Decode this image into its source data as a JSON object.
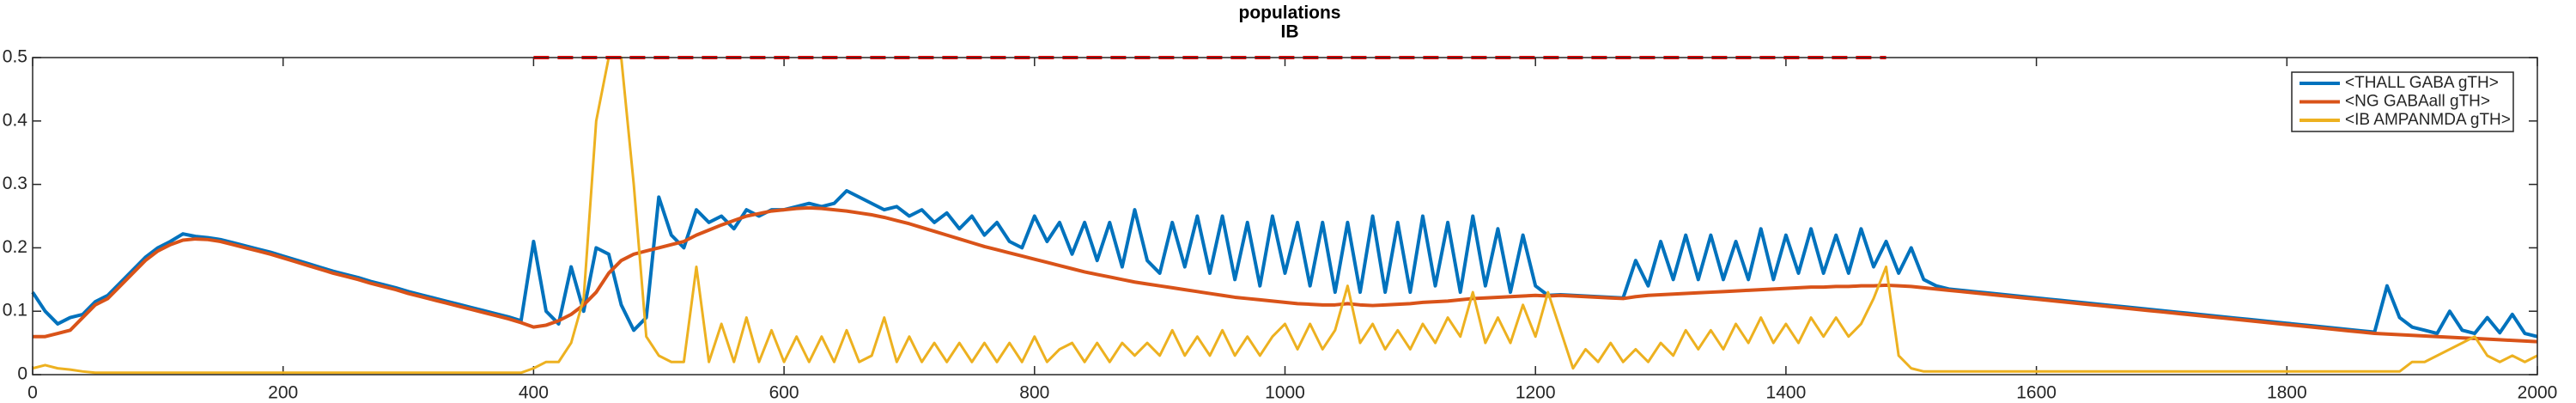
{
  "chart_data": {
    "type": "line",
    "title": "populations",
    "subtitle": "IB",
    "x": [
      0,
      10,
      20,
      30,
      40,
      50,
      60,
      70,
      80,
      90,
      100,
      110,
      120,
      130,
      140,
      150,
      160,
      170,
      180,
      190,
      200,
      210,
      220,
      230,
      240,
      250,
      260,
      270,
      280,
      290,
      300,
      310,
      320,
      330,
      340,
      350,
      360,
      370,
      380,
      390,
      400,
      410,
      420,
      430,
      440,
      450,
      460,
      470,
      480,
      490,
      500,
      510,
      520,
      530,
      540,
      550,
      560,
      570,
      580,
      590,
      600,
      610,
      620,
      630,
      640,
      650,
      660,
      670,
      680,
      690,
      700,
      710,
      720,
      730,
      740,
      750,
      760,
      770,
      780,
      790,
      800,
      810,
      820,
      830,
      840,
      850,
      860,
      870,
      880,
      890,
      900,
      910,
      920,
      930,
      940,
      950,
      960,
      970,
      980,
      990,
      1000,
      1010,
      1020,
      1030,
      1040,
      1050,
      1060,
      1070,
      1080,
      1090,
      1100,
      1110,
      1120,
      1130,
      1140,
      1150,
      1160,
      1170,
      1180,
      1190,
      1200,
      1210,
      1220,
      1230,
      1240,
      1250,
      1260,
      1270,
      1280,
      1290,
      1300,
      1310,
      1320,
      1330,
      1340,
      1350,
      1360,
      1370,
      1380,
      1390,
      1400,
      1410,
      1420,
      1430,
      1440,
      1450,
      1460,
      1470,
      1480,
      1490,
      1500,
      1510,
      1520,
      1530,
      1540,
      1550,
      1560,
      1570,
      1580,
      1590,
      1600,
      1610,
      1620,
      1630,
      1640,
      1650,
      1660,
      1670,
      1680,
      1690,
      1700,
      1710,
      1720,
      1730,
      1740,
      1750,
      1760,
      1770,
      1780,
      1790,
      1800,
      1810,
      1820,
      1830,
      1840,
      1850,
      1860,
      1870,
      1880,
      1890,
      1900,
      1910,
      1920,
      1930,
      1940,
      1950,
      1960,
      1970,
      1980,
      1990,
      2000
    ],
    "series": [
      {
        "name": "<THALL GABA gTH>",
        "color": "#0072bd",
        "values": [
          0.13,
          0.1,
          0.08,
          0.09,
          0.095,
          0.115,
          0.125,
          0.145,
          0.165,
          0.185,
          0.2,
          0.21,
          0.222,
          0.218,
          0.216,
          0.213,
          0.208,
          0.203,
          0.198,
          0.193,
          0.187,
          0.181,
          0.175,
          0.169,
          0.163,
          0.158,
          0.153,
          0.147,
          0.142,
          0.137,
          0.131,
          0.126,
          0.121,
          0.116,
          0.111,
          0.106,
          0.101,
          0.096,
          0.091,
          0.085,
          0.21,
          0.1,
          0.08,
          0.17,
          0.1,
          0.2,
          0.19,
          0.11,
          0.07,
          0.09,
          0.28,
          0.22,
          0.2,
          0.26,
          0.24,
          0.25,
          0.23,
          0.26,
          0.25,
          0.26,
          0.26,
          0.265,
          0.27,
          0.265,
          0.27,
          0.29,
          0.28,
          0.27,
          0.26,
          0.265,
          0.25,
          0.26,
          0.24,
          0.255,
          0.23,
          0.25,
          0.22,
          0.24,
          0.21,
          0.2,
          0.25,
          0.21,
          0.24,
          0.19,
          0.24,
          0.18,
          0.24,
          0.17,
          0.26,
          0.18,
          0.16,
          0.24,
          0.17,
          0.25,
          0.16,
          0.25,
          0.15,
          0.24,
          0.14,
          0.25,
          0.16,
          0.24,
          0.14,
          0.24,
          0.13,
          0.24,
          0.13,
          0.25,
          0.13,
          0.24,
          0.13,
          0.25,
          0.14,
          0.24,
          0.13,
          0.25,
          0.14,
          0.23,
          0.13,
          0.22,
          0.14,
          0.125,
          0.126,
          0.125,
          0.124,
          0.123,
          0.122,
          0.121,
          0.18,
          0.14,
          0.21,
          0.15,
          0.22,
          0.15,
          0.22,
          0.15,
          0.21,
          0.15,
          0.23,
          0.15,
          0.22,
          0.16,
          0.23,
          0.16,
          0.22,
          0.16,
          0.23,
          0.17,
          0.21,
          0.16,
          0.2,
          0.15,
          0.14,
          0.135,
          0.133,
          0.131,
          0.129,
          0.127,
          0.125,
          0.123,
          0.121,
          0.119,
          0.117,
          0.115,
          0.113,
          0.111,
          0.109,
          0.107,
          0.105,
          0.103,
          0.101,
          0.099,
          0.097,
          0.095,
          0.093,
          0.091,
          0.089,
          0.087,
          0.085,
          0.083,
          0.081,
          0.079,
          0.077,
          0.075,
          0.073,
          0.071,
          0.069,
          0.067,
          0.14,
          0.09,
          0.075,
          0.07,
          0.065,
          0.1,
          0.07,
          0.065,
          0.09,
          0.066,
          0.095,
          0.065,
          0.06
        ]
      },
      {
        "name": "<NG GABAall gTH>",
        "color": "#d95319",
        "values": [
          0.06,
          0.06,
          0.065,
          0.07,
          0.09,
          0.11,
          0.12,
          0.14,
          0.16,
          0.18,
          0.195,
          0.205,
          0.212,
          0.214,
          0.213,
          0.21,
          0.205,
          0.2,
          0.195,
          0.19,
          0.184,
          0.178,
          0.172,
          0.166,
          0.16,
          0.155,
          0.15,
          0.144,
          0.139,
          0.134,
          0.128,
          0.123,
          0.118,
          0.113,
          0.108,
          0.103,
          0.098,
          0.093,
          0.088,
          0.082,
          0.075,
          0.078,
          0.085,
          0.095,
          0.11,
          0.13,
          0.16,
          0.18,
          0.19,
          0.195,
          0.2,
          0.205,
          0.21,
          0.22,
          0.228,
          0.236,
          0.243,
          0.25,
          0.254,
          0.258,
          0.26,
          0.262,
          0.263,
          0.262,
          0.26,
          0.258,
          0.255,
          0.252,
          0.248,
          0.243,
          0.238,
          0.232,
          0.226,
          0.22,
          0.214,
          0.208,
          0.202,
          0.197,
          0.192,
          0.187,
          0.182,
          0.177,
          0.172,
          0.167,
          0.162,
          0.158,
          0.154,
          0.15,
          0.146,
          0.143,
          0.14,
          0.137,
          0.134,
          0.131,
          0.128,
          0.125,
          0.122,
          0.12,
          0.118,
          0.116,
          0.114,
          0.112,
          0.111,
          0.11,
          0.11,
          0.112,
          0.11,
          0.109,
          0.11,
          0.111,
          0.112,
          0.114,
          0.115,
          0.116,
          0.118,
          0.12,
          0.121,
          0.122,
          0.123,
          0.124,
          0.125,
          0.124,
          0.125,
          0.124,
          0.123,
          0.122,
          0.121,
          0.12,
          0.123,
          0.125,
          0.126,
          0.127,
          0.128,
          0.129,
          0.13,
          0.131,
          0.132,
          0.133,
          0.134,
          0.135,
          0.136,
          0.137,
          0.138,
          0.138,
          0.139,
          0.139,
          0.14,
          0.14,
          0.141,
          0.14,
          0.139,
          0.137,
          0.135,
          0.133,
          0.131,
          0.129,
          0.127,
          0.125,
          0.123,
          0.121,
          0.119,
          0.117,
          0.115,
          0.113,
          0.111,
          0.109,
          0.107,
          0.105,
          0.103,
          0.101,
          0.099,
          0.097,
          0.095,
          0.093,
          0.091,
          0.089,
          0.087,
          0.085,
          0.083,
          0.081,
          0.079,
          0.077,
          0.075,
          0.073,
          0.071,
          0.069,
          0.067,
          0.065,
          0.064,
          0.063,
          0.062,
          0.061,
          0.06,
          0.059,
          0.058,
          0.057,
          0.056,
          0.055,
          0.054,
          0.053,
          0.052
        ]
      },
      {
        "name": "<IB AMPANMDA gTH>",
        "color": "#edb120",
        "values": [
          0.01,
          0.015,
          0.01,
          0.008,
          0.005,
          0.003,
          0.003,
          0.003,
          0.003,
          0.003,
          0.003,
          0.003,
          0.003,
          0.003,
          0.003,
          0.003,
          0.003,
          0.003,
          0.003,
          0.003,
          0.003,
          0.003,
          0.003,
          0.003,
          0.003,
          0.003,
          0.003,
          0.003,
          0.003,
          0.003,
          0.003,
          0.003,
          0.003,
          0.003,
          0.003,
          0.003,
          0.003,
          0.003,
          0.003,
          0.003,
          0.01,
          0.02,
          0.02,
          0.05,
          0.12,
          0.4,
          0.5,
          0.5,
          0.3,
          0.06,
          0.03,
          0.02,
          0.02,
          0.17,
          0.02,
          0.08,
          0.02,
          0.09,
          0.02,
          0.07,
          0.02,
          0.06,
          0.02,
          0.06,
          0.02,
          0.07,
          0.02,
          0.03,
          0.09,
          0.02,
          0.06,
          0.02,
          0.05,
          0.02,
          0.05,
          0.02,
          0.05,
          0.02,
          0.05,
          0.02,
          0.06,
          0.02,
          0.04,
          0.05,
          0.02,
          0.05,
          0.02,
          0.05,
          0.03,
          0.05,
          0.03,
          0.07,
          0.03,
          0.06,
          0.03,
          0.07,
          0.03,
          0.06,
          0.03,
          0.06,
          0.08,
          0.04,
          0.08,
          0.04,
          0.07,
          0.14,
          0.05,
          0.08,
          0.04,
          0.07,
          0.04,
          0.08,
          0.05,
          0.09,
          0.06,
          0.13,
          0.05,
          0.09,
          0.05,
          0.11,
          0.06,
          0.13,
          0.07,
          0.01,
          0.04,
          0.02,
          0.05,
          0.02,
          0.04,
          0.02,
          0.05,
          0.03,
          0.07,
          0.04,
          0.07,
          0.04,
          0.08,
          0.05,
          0.09,
          0.05,
          0.08,
          0.05,
          0.09,
          0.06,
          0.09,
          0.06,
          0.08,
          0.12,
          0.17,
          0.03,
          0.01,
          0.005,
          0.005,
          0.005,
          0.005,
          0.005,
          0.005,
          0.005,
          0.005,
          0.005,
          0.005,
          0.005,
          0.005,
          0.005,
          0.005,
          0.005,
          0.005,
          0.005,
          0.005,
          0.005,
          0.005,
          0.005,
          0.005,
          0.005,
          0.005,
          0.005,
          0.005,
          0.005,
          0.005,
          0.005,
          0.005,
          0.005,
          0.005,
          0.005,
          0.005,
          0.005,
          0.005,
          0.005,
          0.005,
          0.005,
          0.02,
          0.02,
          0.03,
          0.04,
          0.05,
          0.06,
          0.03,
          0.02,
          0.03,
          0.02,
          0.03
        ]
      }
    ],
    "dashed_line": {
      "x": [
        400,
        1480
      ],
      "values": [
        0.5,
        0.5
      ],
      "color": "#ff0000"
    },
    "xlim": [
      0,
      2000
    ],
    "ylim": [
      0,
      0.5
    ],
    "xticks": [
      0,
      200,
      400,
      600,
      800,
      1000,
      1200,
      1400,
      1600,
      1800,
      2000
    ],
    "yticks": [
      0,
      0.1,
      0.2,
      0.3,
      0.4,
      0.5
    ],
    "grid": false,
    "legend_position": "upper right"
  }
}
